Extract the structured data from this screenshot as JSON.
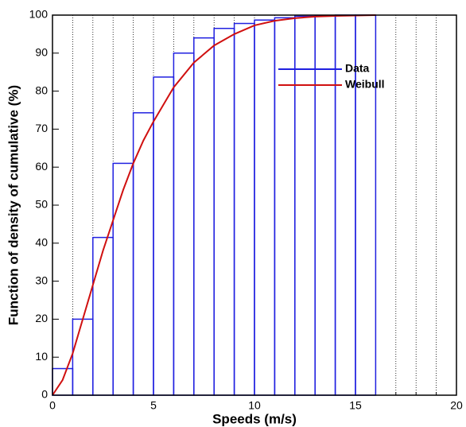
{
  "chart_data": {
    "type": "histogram",
    "x_label": "Speeds (m/s)",
    "y_label": "Function of density of cumulative (%)",
    "bins": [
      0,
      1,
      2,
      3,
      4,
      5,
      6,
      7,
      8,
      9,
      10,
      11,
      12,
      13,
      14,
      15,
      16
    ],
    "series": [
      {
        "name": "Data",
        "color": "#2020e0",
        "values": [
          7,
          20,
          41.5,
          61,
          74.3,
          83.7,
          90,
          94,
          96.5,
          97.8,
          98.7,
          99.3,
          99.7,
          99.9,
          100,
          100
        ]
      },
      {
        "name": "Weibull",
        "type": "line",
        "color": "#d01010",
        "x": [
          0,
          0.5,
          1,
          1.5,
          2,
          2.5,
          3,
          3.5,
          4,
          4.5,
          5,
          6,
          7,
          8,
          9,
          10,
          11,
          12,
          13,
          14,
          15,
          16
        ],
        "values": [
          0,
          4,
          11,
          20,
          29,
          38,
          46,
          54,
          61,
          67,
          72,
          81,
          87.5,
          92,
          95,
          97.3,
          98.5,
          99.2,
          99.6,
          99.8,
          99.9,
          100
        ]
      }
    ],
    "xlim": [
      0,
      20
    ],
    "xticks": [
      0,
      5,
      10,
      15,
      20
    ],
    "xminorticks": [
      1,
      2,
      3,
      4,
      6,
      7,
      8,
      9,
      11,
      12,
      13,
      14,
      16,
      17,
      18,
      19
    ],
    "ylim": [
      0,
      100
    ],
    "yticks": [
      0,
      10,
      20,
      30,
      40,
      50,
      60,
      70,
      80,
      90,
      100
    ],
    "grid": "x",
    "legend": "upper right"
  }
}
